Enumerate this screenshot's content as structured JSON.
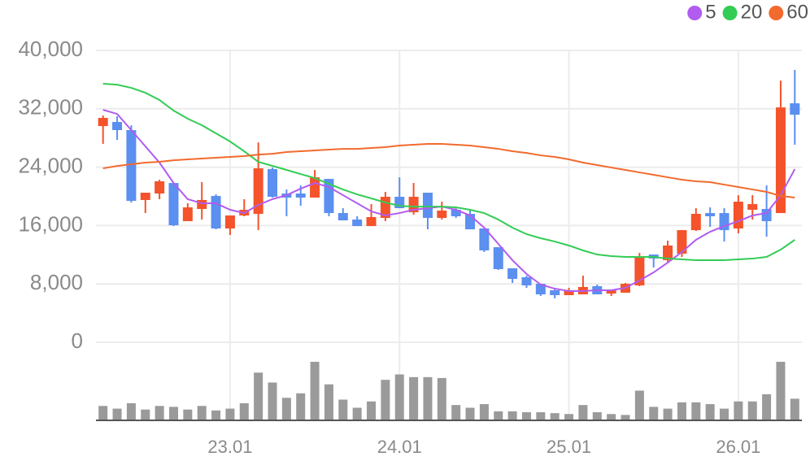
{
  "chart_data": {
    "type": "candlestick",
    "categories": [
      null,
      null,
      null,
      null,
      null,
      null,
      null,
      null,
      null,
      "23.01",
      null,
      null,
      null,
      null,
      null,
      null,
      null,
      null,
      null,
      null,
      null,
      "24.01",
      null,
      null,
      null,
      null,
      null,
      null,
      null,
      null,
      null,
      null,
      null,
      "25.01",
      null,
      null,
      null,
      null,
      null,
      null,
      null,
      null,
      null,
      null,
      null,
      "26.01",
      null,
      null,
      null,
      null
    ],
    "open": [
      29630,
      30190,
      29080,
      19500,
      20390,
      21830,
      16600,
      18270,
      20050,
      15600,
      17380,
      17600,
      23730,
      20390,
      20390,
      19830,
      22390,
      17710,
      16820,
      15930,
      17050,
      19940,
      17820,
      20500,
      17050,
      18160,
      17600,
      15600,
      13030,
      10140,
      8910,
      8020,
      7130,
      6460,
      6570,
      7690,
      6680,
      6800,
      7800,
      12030,
      11250,
      12140,
      15370,
      17710,
      17710,
      15600,
      18160,
      18270,
      17710,
      32750
    ],
    "high": [
      31080,
      30970,
      29740,
      20500,
      22280,
      21830,
      19050,
      21950,
      20280,
      17380,
      19610,
      27400,
      23950,
      20940,
      21500,
      23620,
      22390,
      18380,
      17270,
      18940,
      20610,
      22610,
      21830,
      20500,
      19270,
      18380,
      18160,
      15600,
      13030,
      10140,
      9130,
      8020,
      7350,
      7460,
      9130,
      7910,
      7130,
      8130,
      12250,
      12030,
      13930,
      15370,
      18380,
      18490,
      18380,
      20160,
      20160,
      21500,
      35870,
      37320
    ],
    "low": [
      27190,
      27740,
      19160,
      17710,
      19610,
      15930,
      16600,
      16820,
      15480,
      14700,
      17270,
      15370,
      19830,
      17270,
      18710,
      19830,
      17270,
      16710,
      15930,
      15930,
      16600,
      18380,
      17490,
      15480,
      16820,
      17050,
      15480,
      12370,
      9910,
      8130,
      7460,
      6350,
      6020,
      6460,
      6570,
      6570,
      6350,
      6800,
      7690,
      10250,
      11030,
      11700,
      15260,
      15820,
      13810,
      14930,
      16820,
      14480,
      17710,
      27070
    ],
    "close": [
      30750,
      29080,
      19380,
      20500,
      22060,
      16040,
      18490,
      19500,
      15600,
      17380,
      18160,
      23840,
      19940,
      19830,
      19830,
      22610,
      17710,
      16710,
      15930,
      17160,
      19940,
      18380,
      19940,
      17050,
      18050,
      17270,
      15480,
      12590,
      10030,
      8690,
      7800,
      6570,
      6460,
      7130,
      7580,
      6570,
      7130,
      8020,
      11700,
      11480,
      13260,
      15370,
      17600,
      17270,
      15370,
      19270,
      18940,
      16600,
      32190,
      31190
    ],
    "volume": [
      16,
      13,
      19,
      12,
      16,
      15,
      12,
      16,
      11,
      13,
      19,
      53,
      42,
      25,
      30,
      65,
      40,
      23,
      14,
      21,
      45,
      51,
      48,
      48,
      47,
      17,
      14,
      18,
      10,
      10,
      9,
      9,
      8,
      7,
      17,
      9,
      7,
      6,
      33,
      15,
      13,
      20,
      20,
      18,
      13,
      21,
      21,
      29,
      65,
      24
    ],
    "up_color": "#f4532b",
    "down_color": "#5b8ff0",
    "volume_color": "#9a9a9a",
    "series": [
      {
        "name": "5",
        "color": "#b15cf0",
        "values": [
          31860,
          31300,
          29080,
          26850,
          24620,
          21830,
          19610,
          19050,
          19050,
          18160,
          17710,
          18830,
          19610,
          20160,
          21050,
          21830,
          21280,
          20160,
          19050,
          17940,
          17380,
          17710,
          18160,
          18380,
          18600,
          18160,
          17380,
          15710,
          13480,
          11250,
          9360,
          7910,
          7350,
          7020,
          7020,
          7130,
          7130,
          7460,
          8470,
          9580,
          10920,
          12370,
          14040,
          15150,
          15930,
          16600,
          17380,
          17710,
          20160,
          23730
        ]
      },
      {
        "name": "20",
        "color": "#33cc55",
        "values": [
          35430,
          35310,
          34870,
          34200,
          33200,
          31750,
          30640,
          29750,
          28630,
          27520,
          26180,
          24730,
          24180,
          23620,
          23060,
          22500,
          21720,
          20940,
          20270,
          19720,
          19160,
          18710,
          18600,
          18600,
          18600,
          18490,
          18160,
          17710,
          16820,
          15710,
          14820,
          14260,
          13810,
          13260,
          12590,
          12030,
          11810,
          11700,
          11700,
          11700,
          11470,
          11360,
          11250,
          11250,
          11250,
          11360,
          11470,
          11700,
          12700,
          14040
        ]
      },
      {
        "name": "60",
        "color": "#f26a2e",
        "values": [
          23840,
          24170,
          24400,
          24620,
          24730,
          24950,
          25070,
          25180,
          25290,
          25400,
          25510,
          25730,
          25840,
          26070,
          26180,
          26290,
          26400,
          26510,
          26510,
          26630,
          26740,
          26960,
          27070,
          27180,
          27180,
          27070,
          26960,
          26740,
          26510,
          26180,
          25950,
          25620,
          25400,
          25070,
          24620,
          24290,
          23950,
          23620,
          23280,
          22950,
          22610,
          22280,
          22060,
          21950,
          21610,
          21280,
          20940,
          20610,
          20050,
          19830
        ]
      }
    ],
    "ylim": [
      0,
      40000
    ],
    "yticks": [
      0,
      {
        "value": 8000,
        "label": "8,000"
      },
      {
        "value": 16000,
        "label": "16,000"
      },
      {
        "value": 24000,
        "label": "24,000"
      },
      {
        "value": 32000,
        "label": "32,000"
      },
      {
        "value": 40000,
        "label": "40,000"
      }
    ],
    "grid": true,
    "legend": "top-right"
  }
}
